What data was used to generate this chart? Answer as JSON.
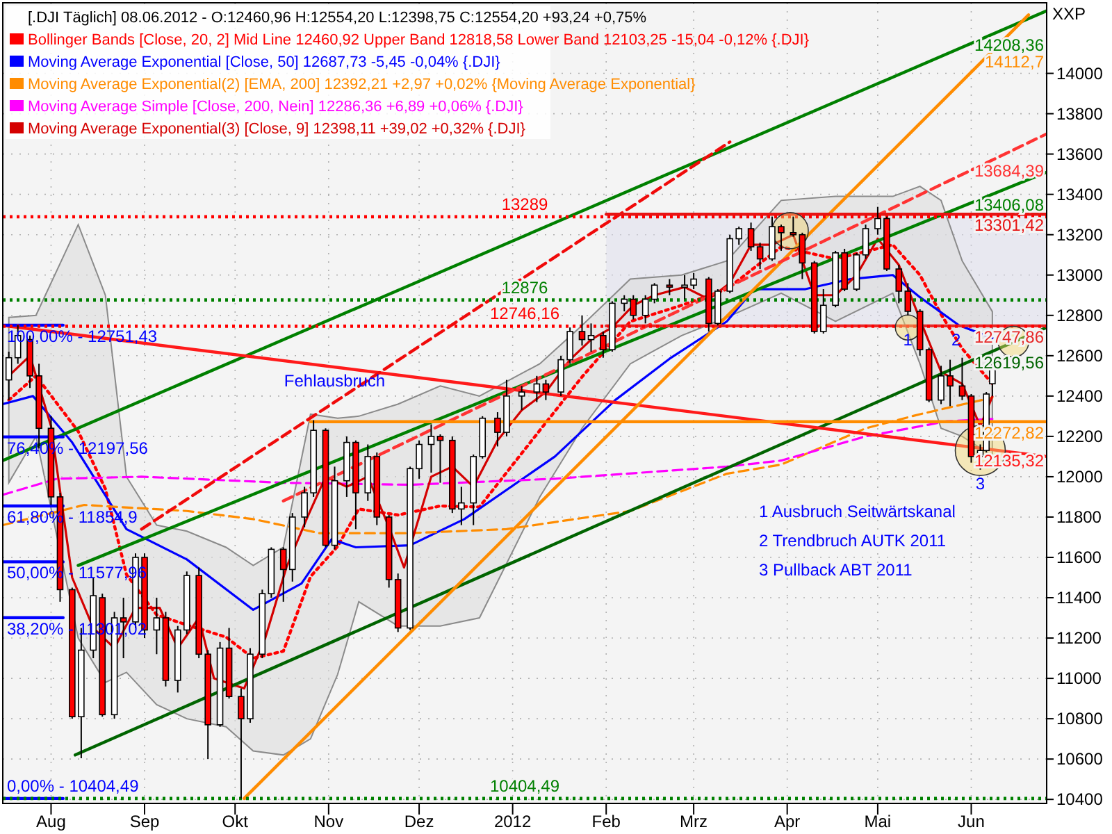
{
  "chart_data": {
    "type": "candlestick",
    "title": "[.DJI  Täglich] 08.06.2012 - O:12460,96 H:12554,20 L:12398,75 C:12554,20 +93,24 +0,75%",
    "ylabel": "XXP",
    "xlim": [
      "2011-07-16",
      "2012-06-26"
    ],
    "ylim": [
      10380,
      14350
    ],
    "xticks": [
      {
        "value": "2011-08-01",
        "label": "Aug"
      },
      {
        "value": "2011-09-01",
        "label": "Sep"
      },
      {
        "value": "2011-10-01",
        "label": "Okt"
      },
      {
        "value": "2011-11-01",
        "label": "Nov"
      },
      {
        "value": "2011-12-01",
        "label": "Dez"
      },
      {
        "value": "2012-01-01",
        "label": "2012"
      },
      {
        "value": "2012-02-01",
        "label": "Feb"
      },
      {
        "value": "2012-03-01",
        "label": "Mrz"
      },
      {
        "value": "2012-04-01",
        "label": "Apr"
      },
      {
        "value": "2012-05-01",
        "label": "Mai"
      },
      {
        "value": "2012-06-01",
        "label": "Jun"
      }
    ],
    "yticks": [
      10400,
      10600,
      10800,
      11000,
      11200,
      11400,
      11600,
      11800,
      12000,
      12200,
      12400,
      12600,
      12800,
      13000,
      13200,
      13400,
      13600,
      13800,
      14000
    ],
    "grid": true,
    "legend": "top left",
    "series": [
      {
        "x": [
          "2011-07-18",
          "2011-07-21",
          "2011-07-25",
          "2011-07-28",
          "2011-08-01",
          "2011-08-04",
          "2011-08-08",
          "2011-08-11",
          "2011-08-15",
          "2011-08-18",
          "2011-08-22",
          "2011-08-25",
          "2011-08-29",
          "2011-09-01",
          "2011-09-05",
          "2011-09-08",
          "2011-09-12",
          "2011-09-15",
          "2011-09-19",
          "2011-09-22",
          "2011-09-26",
          "2011-09-29",
          "2011-10-03",
          "2011-10-06",
          "2011-10-10",
          "2011-10-13",
          "2011-10-17",
          "2011-10-20",
          "2011-10-24",
          "2011-10-27",
          "2011-10-31",
          "2011-11-03",
          "2011-11-07",
          "2011-11-10",
          "2011-11-14",
          "2011-11-17",
          "2011-11-21",
          "2011-11-24",
          "2011-11-28",
          "2011-12-01",
          "2011-12-05",
          "2011-12-08",
          "2011-12-12",
          "2011-12-15",
          "2011-12-19",
          "2011-12-22",
          "2011-12-27",
          "2011-12-30",
          "2012-01-04",
          "2012-01-09",
          "2012-01-12",
          "2012-01-17",
          "2012-01-20",
          "2012-01-24",
          "2012-01-27",
          "2012-01-31",
          "2012-02-03",
          "2012-02-07",
          "2012-02-10",
          "2012-02-14",
          "2012-02-17",
          "2012-02-22",
          "2012-02-27",
          "2012-03-01",
          "2012-03-06",
          "2012-03-09",
          "2012-03-13",
          "2012-03-16",
          "2012-03-20",
          "2012-03-23",
          "2012-03-27",
          "2012-03-30",
          "2012-04-03",
          "2012-04-06",
          "2012-04-10",
          "2012-04-13",
          "2012-04-17",
          "2012-04-20",
          "2012-04-24",
          "2012-04-27",
          "2012-05-01",
          "2012-05-04",
          "2012-05-08",
          "2012-05-11",
          "2012-05-15",
          "2012-05-18",
          "2012-05-22",
          "2012-05-25",
          "2012-05-29",
          "2012-06-01",
          "2012-06-04",
          "2012-06-06",
          "2012-06-08"
        ],
        "ohlc": [
          [
            12480,
            12620,
            12380,
            12590
          ],
          [
            12590,
            12751,
            12560,
            12700
          ],
          [
            12680,
            12700,
            12440,
            12500
          ],
          [
            12500,
            12560,
            12140,
            12240
          ],
          [
            12240,
            12300,
            11860,
            11900
          ],
          [
            11900,
            11920,
            11380,
            11440
          ],
          [
            11440,
            11450,
            10800,
            10810
          ],
          [
            10810,
            11250,
            10604,
            11140
          ],
          [
            11140,
            11500,
            11100,
            11410
          ],
          [
            11400,
            11420,
            10810,
            10820
          ],
          [
            10820,
            11330,
            10800,
            11300
          ],
          [
            11300,
            11400,
            11100,
            11280
          ],
          [
            11280,
            11620,
            11250,
            11600
          ],
          [
            11600,
            11620,
            11200,
            11240
          ],
          [
            11240,
            11400,
            11120,
            11300
          ],
          [
            11300,
            11330,
            10960,
            10990
          ],
          [
            10990,
            11260,
            10930,
            11240
          ],
          [
            11240,
            11530,
            11220,
            11510
          ],
          [
            11510,
            11550,
            11100,
            11120
          ],
          [
            11120,
            11140,
            10600,
            10770
          ],
          [
            10770,
            11180,
            10760,
            11150
          ],
          [
            11150,
            11250,
            10900,
            10910
          ],
          [
            10910,
            10950,
            10404,
            10800
          ],
          [
            10800,
            11150,
            10780,
            11120
          ],
          [
            11120,
            11440,
            11100,
            11420
          ],
          [
            11420,
            11650,
            11400,
            11640
          ],
          [
            11640,
            11650,
            11380,
            11540
          ],
          [
            11540,
            11820,
            11480,
            11800
          ],
          [
            11800,
            11950,
            11750,
            11920
          ],
          [
            11920,
            12280,
            11900,
            12230
          ],
          [
            12230,
            12240,
            11650,
            11660
          ],
          [
            11660,
            12050,
            11640,
            11980
          ],
          [
            11980,
            12200,
            11900,
            12170
          ],
          [
            12170,
            12180,
            11740,
            11920
          ],
          [
            11920,
            12160,
            11880,
            12100
          ],
          [
            12100,
            12120,
            11760,
            11800
          ],
          [
            11800,
            11810,
            11450,
            11490
          ],
          [
            11490,
            11520,
            11230,
            11250
          ],
          [
            11250,
            12050,
            11240,
            12040
          ],
          [
            12040,
            12180,
            11990,
            12160
          ],
          [
            12160,
            12260,
            12020,
            12200
          ],
          [
            12200,
            12210,
            11970,
            12180
          ],
          [
            12180,
            12200,
            11820,
            11840
          ],
          [
            11840,
            11950,
            11760,
            11870
          ],
          [
            11870,
            12110,
            11760,
            12100
          ],
          [
            12100,
            12300,
            12090,
            12290
          ],
          [
            12290,
            12320,
            12150,
            12220
          ],
          [
            12220,
            12480,
            12200,
            12400
          ],
          [
            12400,
            12450,
            12330,
            12420
          ],
          [
            12420,
            12500,
            12370,
            12460
          ],
          [
            12460,
            12480,
            12380,
            12420
          ],
          [
            12420,
            12600,
            12400,
            12580
          ],
          [
            12580,
            12740,
            12560,
            12720
          ],
          [
            12720,
            12800,
            12650,
            12680
          ],
          [
            12680,
            12760,
            12620,
            12700
          ],
          [
            12700,
            12720,
            12590,
            12630
          ],
          [
            12630,
            12870,
            12620,
            12860
          ],
          [
            12860,
            12900,
            12820,
            12880
          ],
          [
            12880,
            12900,
            12780,
            12800
          ],
          [
            12800,
            12900,
            12760,
            12880
          ],
          [
            12880,
            12960,
            12860,
            12950
          ],
          [
            12950,
            12980,
            12900,
            12940
          ],
          [
            12940,
            13000,
            12880,
            12950
          ],
          [
            12950,
            13010,
            12930,
            12980
          ],
          [
            12980,
            12990,
            12720,
            12760
          ],
          [
            12760,
            12930,
            12750,
            12920
          ],
          [
            12920,
            13200,
            12910,
            13180
          ],
          [
            13180,
            13240,
            13150,
            13230
          ],
          [
            13230,
            13260,
            13120,
            13140
          ],
          [
            13140,
            13160,
            13030,
            13080
          ],
          [
            13080,
            13290,
            13070,
            13240
          ],
          [
            13240,
            13250,
            13120,
            13210
          ],
          [
            13210,
            13290,
            13190,
            13200
          ],
          [
            13200,
            13210,
            12980,
            13060
          ],
          [
            13060,
            13070,
            12710,
            12720
          ],
          [
            12720,
            12930,
            12710,
            12850
          ],
          [
            12850,
            13120,
            12840,
            13110
          ],
          [
            13110,
            13130,
            12920,
            12930
          ],
          [
            12930,
            13110,
            12920,
            13100
          ],
          [
            13100,
            13250,
            13080,
            13230
          ],
          [
            13230,
            13338,
            13200,
            13280
          ],
          [
            13280,
            13290,
            13020,
            13030
          ],
          [
            13030,
            13050,
            12860,
            12920
          ],
          [
            12920,
            12960,
            12800,
            12820
          ],
          [
            12820,
            12830,
            12600,
            12630
          ],
          [
            12630,
            12640,
            12370,
            12380
          ],
          [
            12380,
            12550,
            12360,
            12500
          ],
          [
            12500,
            12580,
            12350,
            12450
          ],
          [
            12450,
            12590,
            12380,
            12400
          ],
          [
            12400,
            12410,
            12070,
            12100
          ],
          [
            12100,
            12160,
            12035,
            12130
          ],
          [
            12130,
            12420,
            12120,
            12410
          ],
          [
            12460.96,
            12554.2,
            12398.75,
            12554.2
          ]
        ]
      },
      {
        "type": "line",
        "name": "Bollinger Bands [Close, 20, 2] Mid Line 12460,92 Upper Band 12818,58 Lower Band 12103,25 -15,04 -0,12% {.DJI}",
        "color": "#ff0000",
        "line_style": "dotted",
        "x": [
          "2011-07-18",
          "2011-07-27",
          "2011-08-10",
          "2011-08-19",
          "2011-08-26",
          "2011-09-05",
          "2011-09-15",
          "2011-09-28",
          "2011-10-07",
          "2011-10-17",
          "2011-10-26",
          "2011-11-04",
          "2011-11-11",
          "2011-11-24",
          "2011-12-08",
          "2011-12-21",
          "2012-01-10",
          "2012-01-24",
          "2012-02-09",
          "2012-02-26",
          "2012-03-12",
          "2012-03-30",
          "2012-04-17",
          "2012-05-06",
          "2012-05-15",
          "2012-05-22",
          "2012-05-29",
          "2012-06-08"
        ],
        "values": [
          12380,
          12500,
          12225,
          11940,
          11515,
          11315,
          11265,
          11205,
          11100,
          11135,
          11505,
          11655,
          11840,
          11810,
          11855,
          11850,
          12230,
          12495,
          12770,
          12850,
          12930,
          13140,
          13080,
          13150,
          13000,
          12805,
          12635,
          12460.92
        ],
        "upper": [
          12790,
          12800,
          13250,
          12900,
          12000,
          11760,
          11730,
          11650,
          11560,
          11650,
          12310,
          12290,
          12300,
          12360,
          12450,
          12400,
          12560,
          12750,
          12980,
          13000,
          13070,
          13370,
          13390,
          13390,
          13440,
          13370,
          13070,
          12818.58
        ],
        "lower": [
          11970,
          12200,
          11200,
          10980,
          11030,
          10870,
          10800,
          10760,
          10640,
          10620,
          10700,
          11020,
          11380,
          11260,
          11260,
          11300,
          11900,
          12240,
          12560,
          12700,
          12790,
          12910,
          12770,
          12910,
          12560,
          12240,
          12200,
          12103.25
        ]
      },
      {
        "type": "line",
        "name": "Moving Average Exponential [Close, 50] 12687,73 -5,45 -0,04% {.DJI}",
        "color": "#0000ff",
        "line_style": "solid",
        "x": [
          "2011-07-16",
          "2011-07-26",
          "2011-08-08",
          "2011-08-26",
          "2011-09-15",
          "2011-10-07",
          "2011-10-23",
          "2011-11-02",
          "2011-11-10",
          "2011-11-28",
          "2011-12-16",
          "2012-01-15",
          "2012-02-04",
          "2012-02-22",
          "2012-03-12",
          "2012-03-21",
          "2012-04-07",
          "2012-04-22",
          "2012-05-06",
          "2012-05-15",
          "2012-05-28",
          "2012-06-08"
        ],
        "values": [
          12360,
          12400,
          12170,
          11740,
          11590,
          11340,
          11470,
          11690,
          11650,
          11660,
          11790,
          12100,
          12380,
          12585,
          12770,
          12930,
          12930,
          12980,
          13000,
          12890,
          12750,
          12687.73
        ]
      },
      {
        "type": "line",
        "name": "Moving Average Exponential(2) [EMA, 200] 12392,21 +2,97 +0,02% {Moving Average Exponential}",
        "color": "#ff8c00",
        "line_style": "dashed",
        "x": [
          "2011-07-16",
          "2011-08-12",
          "2011-09-15",
          "2011-10-07",
          "2011-10-29",
          "2011-11-28",
          "2011-12-30",
          "2012-02-09",
          "2012-03-12",
          "2012-03-30",
          "2012-04-27",
          "2012-05-15",
          "2012-06-08"
        ],
        "values": [
          11760,
          11860,
          11830,
          11790,
          11720,
          11720,
          11740,
          11830,
          12015,
          12060,
          12240,
          12310,
          12392.21
        ]
      },
      {
        "type": "line",
        "name": "Moving Average Simple [Close, 200, Nein] 12286,36 +6,89 +0,06% {.DJI}",
        "color": "#ff00ff",
        "line_style": "dashed",
        "x": [
          "2011-07-16",
          "2011-08-03",
          "2011-08-31",
          "2011-10-17",
          "2011-11-28",
          "2012-01-15",
          "2012-03-12",
          "2012-03-30",
          "2012-04-27",
          "2012-05-24",
          "2012-06-08"
        ],
        "values": [
          11910,
          11990,
          12000,
          11970,
          11960,
          11990,
          12050,
          12080,
          12200,
          12275,
          12286.36
        ]
      },
      {
        "type": "line",
        "name": "Moving Average Exponential(3) [Close, 9] 12398,11 +39,02 +0,32% {.DJI}",
        "color": "#d40000",
        "line_style": "solid",
        "x": [
          "2011-07-18",
          "2011-07-25",
          "2011-08-01",
          "2011-08-08",
          "2011-08-15",
          "2011-08-22",
          "2011-08-29",
          "2011-09-06",
          "2011-09-12",
          "2011-09-19",
          "2011-09-24",
          "2011-10-04",
          "2011-10-11",
          "2011-10-18",
          "2011-10-25",
          "2011-10-31",
          "2011-11-07",
          "2011-11-14",
          "2011-11-21",
          "2011-11-26",
          "2011-12-05",
          "2011-12-12",
          "2011-12-19",
          "2011-12-27",
          "2012-01-04",
          "2012-01-12",
          "2012-01-20",
          "2012-01-27",
          "2012-02-03",
          "2012-02-10",
          "2012-02-17",
          "2012-02-27",
          "2012-03-06",
          "2012-03-13",
          "2012-03-20",
          "2012-03-27",
          "2012-04-03",
          "2012-04-10",
          "2012-04-17",
          "2012-04-24",
          "2012-05-01",
          "2012-05-08",
          "2012-05-15",
          "2012-05-22",
          "2012-05-29",
          "2012-06-04",
          "2012-06-08"
        ],
        "values": [
          12500,
          12600,
          12250,
          11500,
          11250,
          11150,
          11350,
          11350,
          11150,
          11300,
          11000,
          10950,
          11200,
          11550,
          11800,
          12000,
          11950,
          12000,
          11750,
          11550,
          12000,
          12050,
          11950,
          12180,
          12330,
          12420,
          12580,
          12680,
          12740,
          12850,
          12900,
          12940,
          12880,
          12960,
          13150,
          13150,
          13200,
          12900,
          12900,
          13000,
          13180,
          13050,
          12780,
          12520,
          12460,
          12250,
          12398.11
        ]
      },
      {
        "type": "line",
        "name": "14208,36",
        "color": "#008000",
        "line_style": "solid",
        "x": [
          "2011-07-16",
          "2012-06-26"
        ],
        "values": [
          12080,
          14310
        ]
      },
      {
        "type": "line",
        "name": "13406,08",
        "color": "#008000",
        "line_style": "solid",
        "x": [
          "2011-08-10",
          "2012-06-26"
        ],
        "values": [
          11560,
          13510
        ]
      },
      {
        "type": "line",
        "name": "12619,56",
        "color": "#006400",
        "line_style": "solid",
        "x": [
          "2011-08-09",
          "2012-06-26"
        ],
        "values": [
          10620,
          12740
        ]
      },
      {
        "type": "line",
        "name": "12135,32",
        "color": "#ff1a1a",
        "line_style": "solid",
        "x": [
          "2011-07-16",
          "2012-06-26"
        ],
        "values": [
          12750,
          12100
        ]
      },
      {
        "type": "line",
        "name": "14112,7",
        "color": "#ff8c00",
        "line_style": "solid",
        "x": [
          "2011-10-04",
          "2012-06-20"
        ],
        "values": [
          10404.49,
          14290
        ]
      },
      {
        "type": "line",
        "color": "#f00a0a",
        "line_style": "dashed",
        "x": [
          "2011-08-31",
          "2012-03-13"
        ],
        "values": [
          11740,
          13660
        ]
      },
      {
        "type": "line",
        "name": "13684,39",
        "color": "#ff3333",
        "line_style": "dashed",
        "x": [
          "2011-10-17",
          "2012-06-26"
        ],
        "values": [
          11880,
          13700
        ]
      },
      {
        "type": "line",
        "name": "12272,82",
        "color": "#ff8c00",
        "line_style": "solid",
        "x": [
          "2011-10-26",
          "2012-06-26"
        ],
        "values": [
          12272.82,
          12272.82
        ]
      },
      {
        "type": "line",
        "name": "13301,42",
        "color": "#e61414",
        "line_style": "solid",
        "x": [
          "2012-02-01",
          "2012-06-26"
        ],
        "values": [
          13301.42,
          13301.42
        ],
        "lower": [
          12747.86,
          12747.86
        ],
        "upper": [
          13301.42,
          13301.42
        ]
      },
      {
        "type": "line",
        "color": "#0000ff",
        "line_style": "solid",
        "x": [
          "2011-07-16",
          "2011-08-05"
        ],
        "values": [
          12751.43,
          12751.43
        ]
      },
      {
        "type": "line",
        "color": "#0000ff",
        "line_style": "solid",
        "x": [
          "2011-07-16",
          "2011-08-05"
        ],
        "values": [
          12197.56,
          12197.56
        ]
      },
      {
        "type": "line",
        "color": "#0000ff",
        "line_style": "solid",
        "x": [
          "2011-07-16",
          "2011-08-05"
        ],
        "values": [
          11854.9,
          11854.9
        ]
      },
      {
        "type": "line",
        "color": "#0000ff",
        "line_style": "solid",
        "x": [
          "2011-07-16",
          "2011-08-05"
        ],
        "values": [
          11577.96,
          11577.96
        ]
      },
      {
        "type": "line",
        "color": "#0000ff",
        "line_style": "solid",
        "x": [
          "2011-07-16",
          "2011-08-05"
        ],
        "values": [
          11301.02,
          11301.02
        ]
      },
      {
        "type": "line",
        "color": "#0000ff",
        "line_style": "solid",
        "x": [
          "2011-07-16",
          "2011-08-05"
        ],
        "values": [
          10404.49,
          10404.49
        ]
      },
      {
        "type": "line",
        "name": "12747,86",
        "color": "#e62828",
        "line_style": "solid",
        "x": [
          "2012-02-01",
          "2012-06-26"
        ],
        "values": [
          12747.86,
          12747.86
        ]
      }
    ],
    "ref_lines": [
      {
        "axis": "y",
        "value": 13289,
        "label": "13289",
        "color": "#ff0000",
        "line_style": "dotted"
      },
      {
        "axis": "y",
        "value": 12876,
        "label": "12876",
        "color": "#008000",
        "line_style": "dotted"
      },
      {
        "axis": "y",
        "value": 12746.16,
        "label": "12746,16",
        "color": "#ff0000",
        "line_style": "dotted"
      },
      {
        "axis": "y",
        "value": 10404.49,
        "label": "10404,49",
        "color": "#008000",
        "line_style": "dotted"
      }
    ],
    "annotations": [
      {
        "text": "100,00% - 12751,43",
        "x": "2011-07-16",
        "y": 12751.43
      },
      {
        "text": "76,40% - 12197,56",
        "x": "2011-07-16",
        "y": 12197.56
      },
      {
        "text": "61,80% - 11854,9",
        "x": "2011-07-16",
        "y": 11854.9
      },
      {
        "text": "50,00% - 11577,96",
        "x": "2011-07-16",
        "y": 11577.96
      },
      {
        "text": "38,20% - 11301,02",
        "x": "2011-07-16",
        "y": 11301.02
      },
      {
        "text": "0,00% - 10404,49",
        "x": "2011-07-16",
        "y": 10404.49
      },
      {
        "text": "Fehlausbruch",
        "x": "2011-11-03",
        "y": 12543
      },
      {
        "text": "1",
        "x": "2012-05-11",
        "y": 12747.86
      },
      {
        "text": "2",
        "x": "2012-05-27",
        "y": 12747.86
      },
      {
        "text": "3",
        "x": "2012-06-04",
        "y": 12035
      },
      "1 Ausbruch Seitwärtskanal",
      "2 Trendbruch AUTK 2011",
      "3 Pullback ABT 2011"
    ]
  }
}
